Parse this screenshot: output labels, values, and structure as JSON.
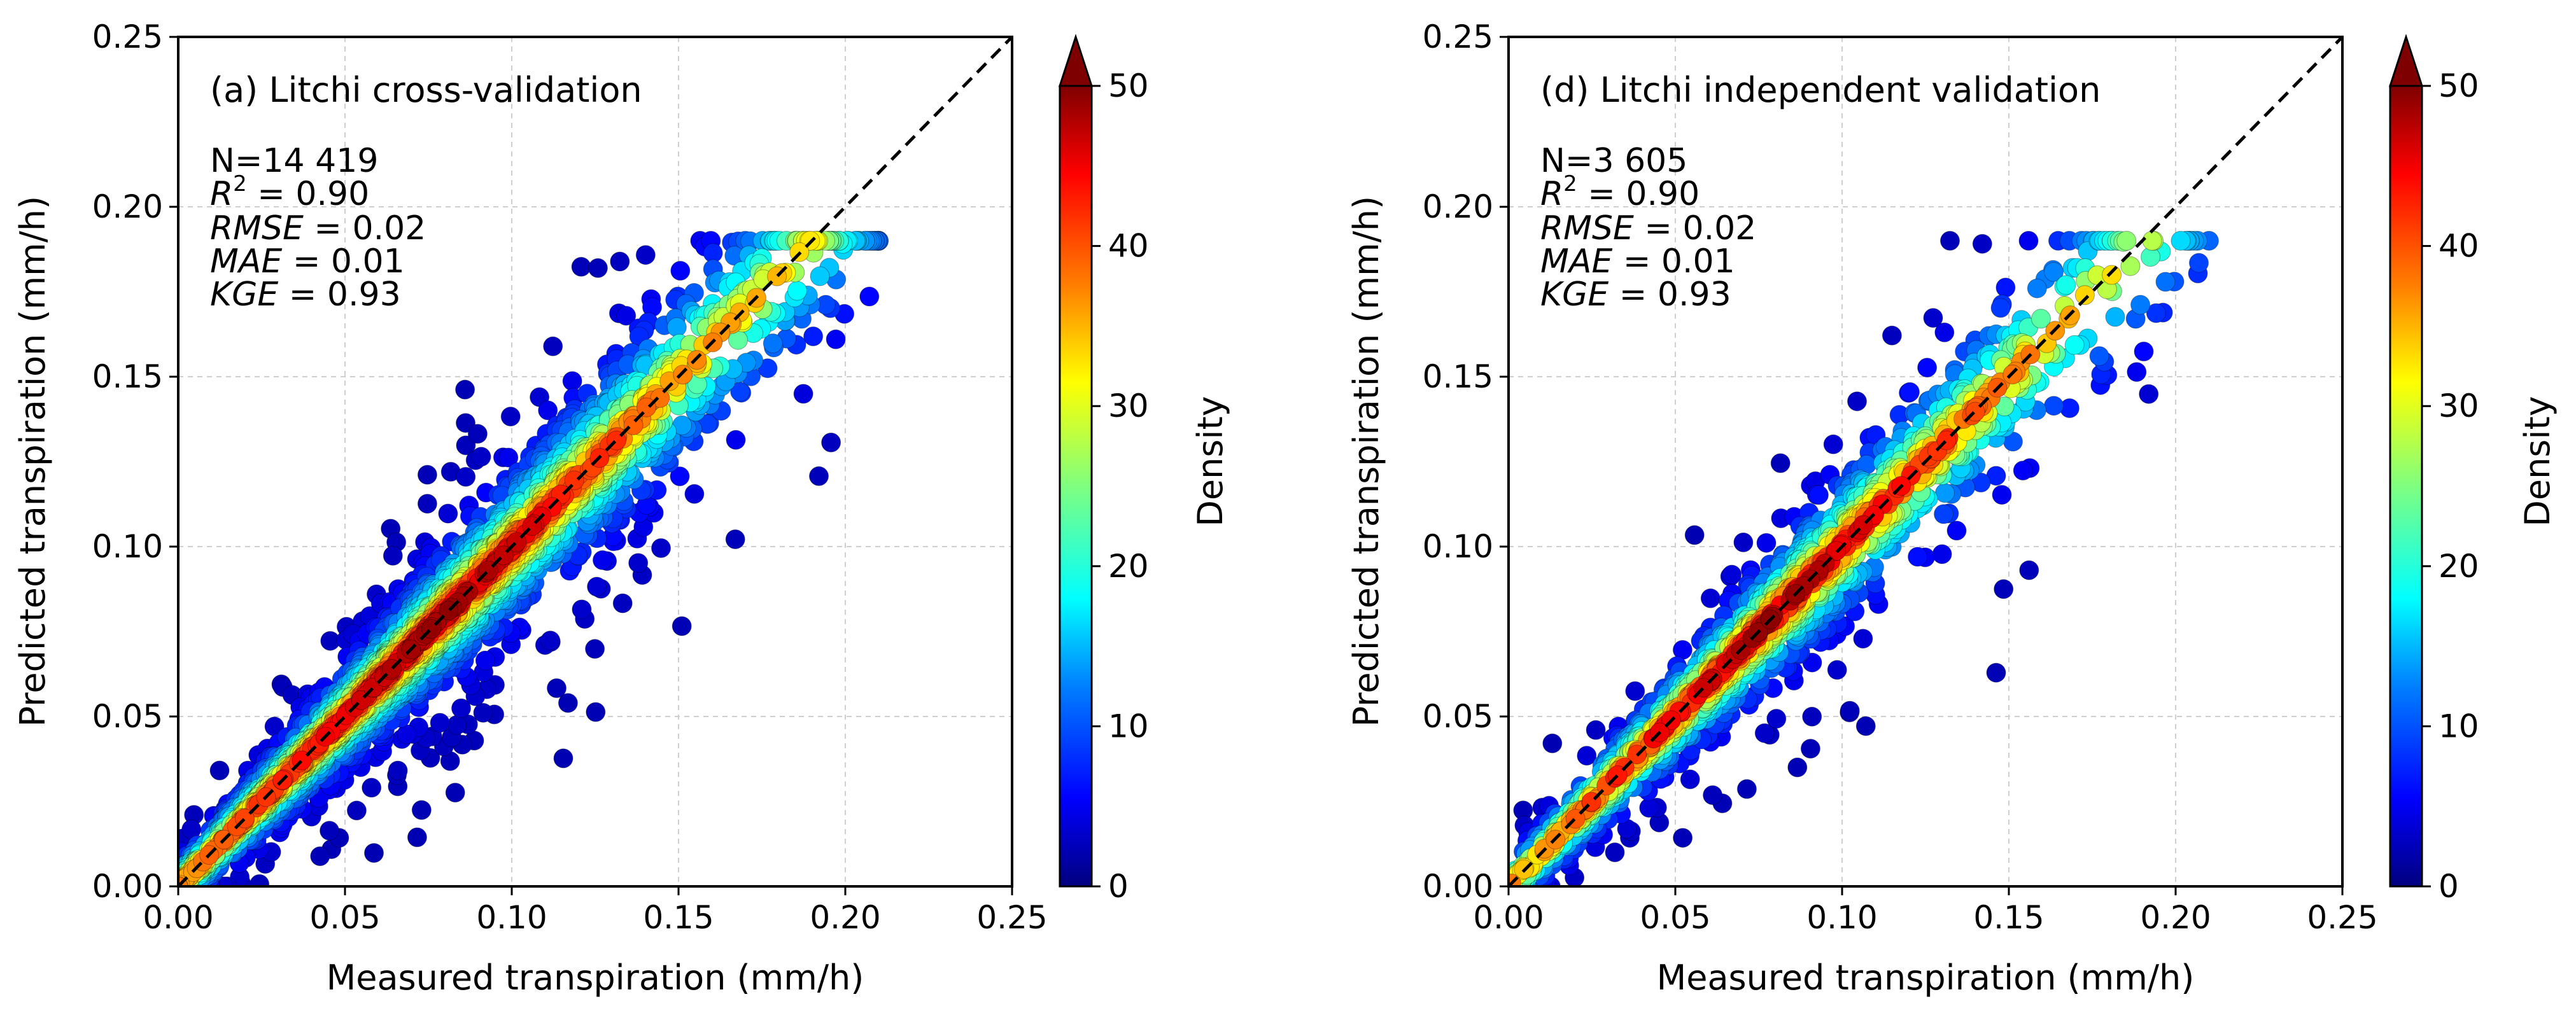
{
  "chart_data": [
    {
      "id": "panel-a",
      "type": "scatter",
      "title": "(a) Litchi cross-validation",
      "xlabel": "Measured transpiration (mm/h)",
      "ylabel": "Predicted transpiration (mm/h)",
      "xlim": [
        0.0,
        0.25
      ],
      "ylim": [
        0.0,
        0.25
      ],
      "xticks": [
        "0.00",
        "0.05",
        "0.10",
        "0.15",
        "0.20",
        "0.25"
      ],
      "yticks": [
        "0.00",
        "0.05",
        "0.10",
        "0.15",
        "0.20",
        "0.25"
      ],
      "grid": true,
      "reference_line": {
        "style": "dashed",
        "from": [
          0,
          0
        ],
        "to": [
          0.25,
          0.25
        ]
      },
      "stats": {
        "n": "N=14 419",
        "r2_label": "R",
        "r2_sup": "2",
        "r2_value": " = 0.90",
        "rmse_label": "RMSE",
        "rmse_value": " = 0.02",
        "mae_label": "MAE",
        "mae_value": " = 0.01",
        "kge_label": "KGE",
        "kge_value": " = 0.93"
      },
      "colorbar": {
        "label": "Density",
        "min": 0,
        "max": 50,
        "ticks": [
          "0",
          "10",
          "20",
          "30",
          "40",
          "50"
        ],
        "extend": "max",
        "cmap": "jet"
      },
      "approx_extent_x": [
        0.0,
        0.21
      ],
      "approx_extent_y": [
        0.0,
        0.19
      ],
      "core_slope_approx": 1.0
    },
    {
      "id": "panel-d",
      "type": "scatter",
      "title": "(d) Litchi independent validation",
      "xlabel": "Measured transpiration (mm/h)",
      "ylabel": "Predicted transpiration (mm/h)",
      "xlim": [
        0.0,
        0.25
      ],
      "ylim": [
        0.0,
        0.25
      ],
      "xticks": [
        "0.00",
        "0.05",
        "0.10",
        "0.15",
        "0.20",
        "0.25"
      ],
      "yticks": [
        "0.00",
        "0.05",
        "0.10",
        "0.15",
        "0.20",
        "0.25"
      ],
      "grid": true,
      "reference_line": {
        "style": "dashed",
        "from": [
          0,
          0
        ],
        "to": [
          0.25,
          0.25
        ]
      },
      "stats": {
        "n": "N=3 605",
        "r2_label": "R",
        "r2_sup": "2",
        "r2_value": " = 0.90",
        "rmse_label": "RMSE",
        "rmse_value": " = 0.02",
        "mae_label": "MAE",
        "mae_value": " = 0.01",
        "kge_label": "KGE",
        "kge_value": " = 0.93"
      },
      "colorbar": {
        "label": "Density",
        "min": 0,
        "max": 50,
        "ticks": [
          "0",
          "10",
          "20",
          "30",
          "40",
          "50"
        ],
        "extend": "max",
        "cmap": "jet"
      },
      "approx_extent_x": [
        0.0,
        0.21
      ],
      "approx_extent_y": [
        0.0,
        0.19
      ],
      "core_slope_approx": 1.0
    }
  ],
  "colors": {
    "jet": [
      "#00007f",
      "#0000ff",
      "#007fff",
      "#00ffff",
      "#7fff7f",
      "#ffff00",
      "#ff7f00",
      "#ff0000",
      "#7f0000"
    ],
    "grid": "#cfcfcf",
    "axis": "#000000"
  }
}
